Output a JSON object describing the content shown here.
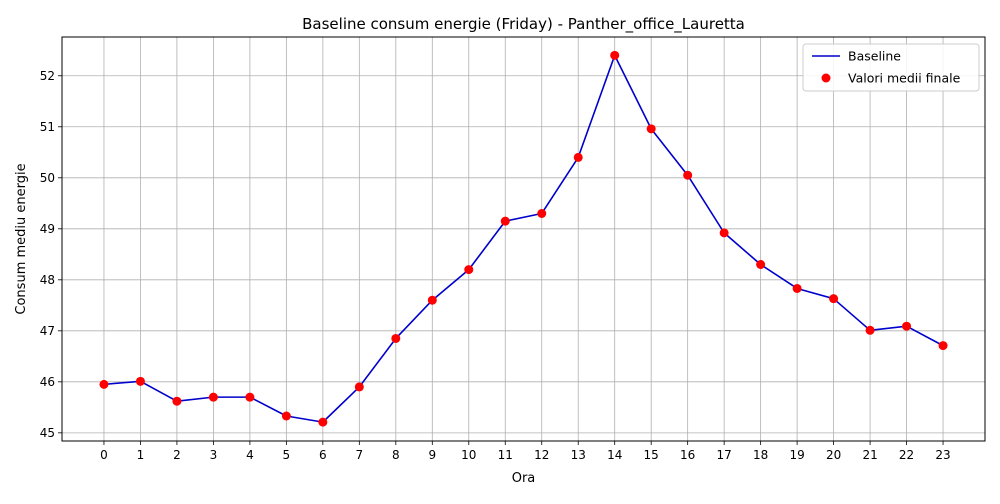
{
  "chart_data": {
    "type": "line",
    "title": "Baseline consum energie (Friday) - Panther_office_Lauretta",
    "xlabel": "Ora",
    "ylabel": "Consum mediu energie",
    "x": [
      0,
      1,
      2,
      3,
      4,
      5,
      6,
      7,
      8,
      9,
      10,
      11,
      12,
      13,
      14,
      15,
      16,
      17,
      18,
      19,
      20,
      21,
      22,
      23
    ],
    "x_tick_labels": [
      "0",
      "1",
      "2",
      "3",
      "4",
      "5",
      "6",
      "7",
      "8",
      "9",
      "10",
      "11",
      "12",
      "13",
      "14",
      "15",
      "16",
      "17",
      "18",
      "19",
      "20",
      "21",
      "22",
      "23"
    ],
    "xlim": [
      -1.15,
      24.15
    ],
    "ylim": [
      44.84,
      52.76
    ],
    "y_ticks": [
      45,
      46,
      47,
      48,
      49,
      50,
      51,
      52
    ],
    "y_tick_labels": [
      "45",
      "46",
      "47",
      "48",
      "49",
      "50",
      "51",
      "52"
    ],
    "grid": true,
    "legend_position": "top-right",
    "series": [
      {
        "name": "Baseline",
        "kind": "line",
        "color": "#0000cc",
        "values": [
          45.95,
          46.01,
          45.62,
          45.7,
          45.7,
          45.33,
          45.21,
          45.9,
          46.85,
          47.6,
          48.2,
          49.15,
          49.3,
          50.4,
          52.4,
          50.96,
          50.05,
          48.92,
          48.3,
          47.83,
          47.63,
          47.01,
          47.09,
          46.71
        ]
      },
      {
        "name": "Valori medii finale",
        "kind": "scatter",
        "color": "#ff0000",
        "values": [
          45.95,
          46.01,
          45.62,
          45.7,
          45.7,
          45.33,
          45.21,
          45.9,
          46.85,
          47.6,
          48.2,
          49.15,
          49.3,
          50.4,
          52.4,
          50.96,
          50.05,
          48.92,
          48.3,
          47.83,
          47.63,
          47.01,
          47.09,
          46.71
        ]
      }
    ]
  }
}
